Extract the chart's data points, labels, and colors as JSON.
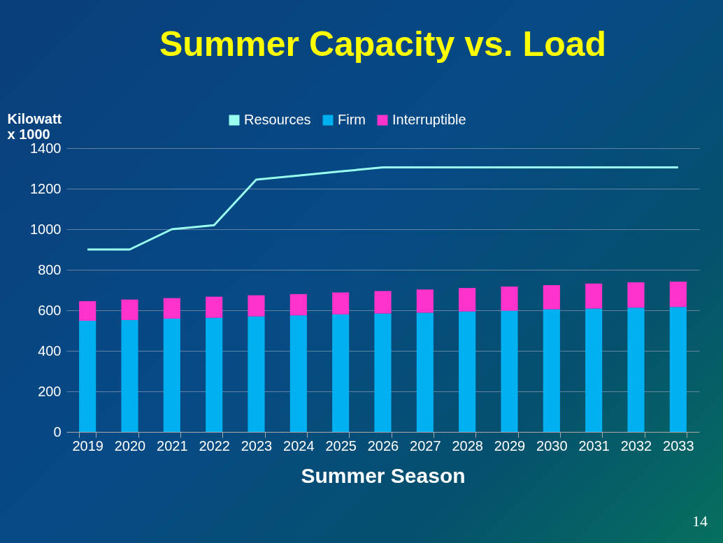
{
  "chart_data": {
    "type": "bar",
    "title": "Summer Capacity vs. Load",
    "xlabel": "Summer Season",
    "ylabel": "Kilowatt\nx 1000",
    "categories": [
      "2019",
      "2020",
      "2021",
      "2022",
      "2023",
      "2024",
      "2025",
      "2026",
      "2027",
      "2028",
      "2029",
      "2030",
      "2031",
      "2032",
      "2033"
    ],
    "stacked": true,
    "series": [
      {
        "name": "Resources",
        "type": "line",
        "color": "#99ffee",
        "values": [
          900,
          900,
          1000,
          1020,
          1245,
          1265,
          1285,
          1305,
          1305,
          1305,
          1305,
          1305,
          1305,
          1305,
          1305
        ]
      },
      {
        "name": "Firm",
        "color": "#00b0f0",
        "values": [
          548,
          552,
          559,
          563,
          570,
          575,
          580,
          584,
          588,
          594,
          598,
          605,
          609,
          613,
          616
        ]
      },
      {
        "name": "Interruptible",
        "color": "#ff33cc",
        "values": [
          97,
          101,
          101,
          104,
          104,
          105,
          108,
          111,
          115,
          116,
          119,
          119,
          123,
          125,
          125
        ]
      }
    ],
    "ylim": [
      0,
      1400
    ],
    "yticks": [
      0,
      200,
      400,
      600,
      800,
      {
        "value": 1000,
        "label": "1000"
      },
      {
        "value": 1200,
        "label": "1200"
      },
      {
        "value": 1400,
        "label": "1400"
      }
    ],
    "grid": "y",
    "legend": "top",
    "annotations": [
      "14"
    ]
  }
}
